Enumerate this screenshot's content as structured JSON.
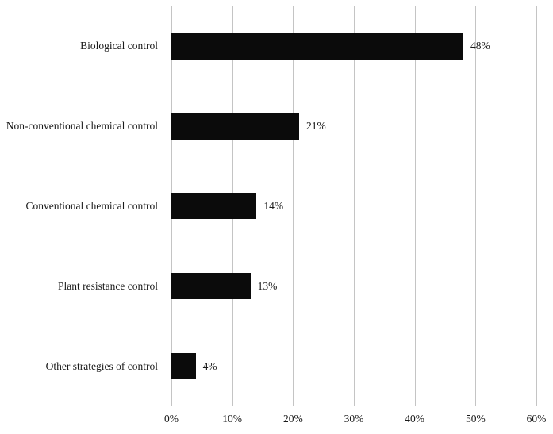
{
  "chart_data": {
    "type": "bar",
    "orientation": "horizontal",
    "title": "",
    "xlabel": "",
    "ylabel": "",
    "categories": [
      "Biological control",
      "Non-conventional chemical control",
      "Conventional chemical control",
      "Plant resistance control",
      "Other strategies of control"
    ],
    "values": [
      48,
      21,
      14,
      13,
      4
    ],
    "value_labels": [
      "48%",
      "21%",
      "14%",
      "13%",
      "4%"
    ],
    "xlim": [
      0,
      60
    ],
    "x_tick_labels": [
      "0%",
      "10%",
      "20%",
      "30%",
      "40%",
      "50%",
      "60%"
    ],
    "x_tick_values": [
      0,
      10,
      20,
      30,
      40,
      50,
      60
    ],
    "grid": true,
    "legend": false,
    "bar_color": "#0b0b0b",
    "gridline_color": "#c4c4c4",
    "text_color": "#1a1a1a"
  }
}
